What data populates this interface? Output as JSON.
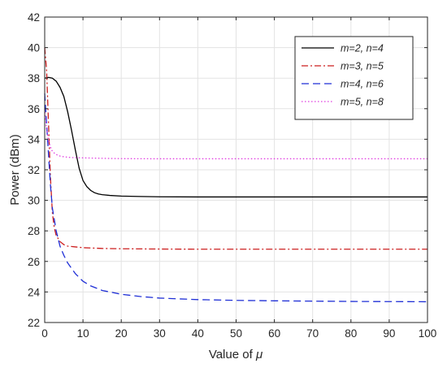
{
  "chart_data": {
    "type": "line",
    "title": "",
    "xlabel_prefix": "Value of ",
    "xlabel_symbol": "μ",
    "ylabel": "Power (dBm)",
    "xlim": [
      0,
      100
    ],
    "ylim": [
      22,
      42
    ],
    "xticks": [
      0,
      10,
      20,
      30,
      40,
      50,
      60,
      70,
      80,
      90,
      100
    ],
    "yticks": [
      22,
      24,
      26,
      28,
      30,
      32,
      34,
      36,
      38,
      40,
      42
    ],
    "grid": true,
    "legend_position": "top-right",
    "series": [
      {
        "name": "m=2, n=4",
        "color": "#000000",
        "dash": "solid",
        "x": [
          0,
          1,
          2,
          3,
          4,
          5,
          6,
          7,
          8,
          9,
          10,
          11,
          12,
          13,
          14,
          15,
          17,
          20,
          25,
          30,
          40,
          50,
          60,
          70,
          80,
          90,
          100
        ],
        "y": [
          38.0,
          38.05,
          38.0,
          37.8,
          37.4,
          36.8,
          35.8,
          34.6,
          33.3,
          32.1,
          31.3,
          30.9,
          30.65,
          30.5,
          30.42,
          30.37,
          30.32,
          30.28,
          30.25,
          30.23,
          30.22,
          30.22,
          30.22,
          30.22,
          30.22,
          30.22,
          30.22
        ]
      },
      {
        "name": "m=3, n=5",
        "color": "#cc1f1f",
        "dash": "dashdot",
        "x": [
          0,
          0.5,
          1,
          1.5,
          2,
          2.5,
          3,
          4,
          5,
          6,
          8,
          10,
          15,
          20,
          30,
          40,
          50,
          60,
          70,
          80,
          90,
          100
        ],
        "y": [
          40.0,
          38.5,
          35.0,
          31.5,
          29.2,
          28.2,
          27.7,
          27.3,
          27.1,
          27.0,
          26.95,
          26.9,
          26.85,
          26.83,
          26.81,
          26.8,
          26.8,
          26.8,
          26.8,
          26.8,
          26.8,
          26.8
        ]
      },
      {
        "name": "m=4, n=6",
        "color": "#1f2fd6",
        "dash": "dashed",
        "x": [
          0,
          0.5,
          1,
          1.5,
          2,
          3,
          4,
          5,
          6,
          8,
          10,
          12,
          15,
          20,
          25,
          30,
          40,
          50,
          60,
          70,
          80,
          90,
          100
        ],
        "y": [
          37.0,
          35.0,
          33.0,
          31.0,
          29.5,
          28.0,
          27.0,
          26.4,
          25.9,
          25.2,
          24.7,
          24.4,
          24.1,
          23.85,
          23.7,
          23.6,
          23.5,
          23.45,
          23.42,
          23.4,
          23.38,
          23.37,
          23.36
        ]
      },
      {
        "name": "m=5, n=8",
        "color": "#e03ce0",
        "dash": "dotted",
        "x": [
          0,
          0.5,
          1,
          1.5,
          2,
          3,
          4,
          5,
          7,
          10,
          15,
          20,
          30,
          40,
          50,
          60,
          70,
          80,
          90,
          100
        ],
        "y": [
          36.0,
          34.6,
          33.9,
          33.5,
          33.2,
          33.0,
          32.9,
          32.85,
          32.8,
          32.78,
          32.75,
          32.73,
          32.72,
          32.72,
          32.72,
          32.72,
          32.72,
          32.72,
          32.72,
          32.72
        ]
      }
    ]
  }
}
